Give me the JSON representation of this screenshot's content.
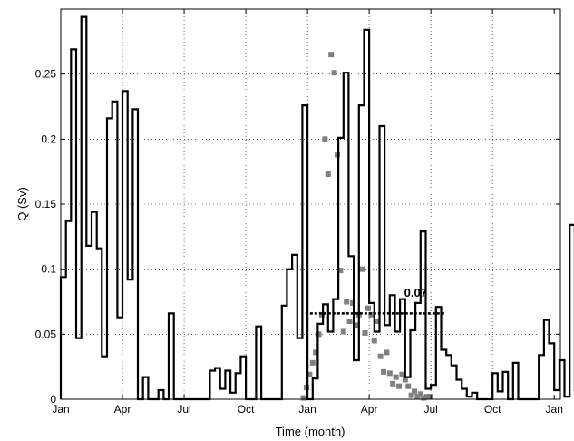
{
  "chart_data": {
    "type": "line",
    "title": "",
    "xlabel": "Time (month)",
    "ylabel": "Q (Sv)",
    "x_tick_labels": [
      "Jan",
      "Apr",
      "Jul",
      "Oct",
      "Jan",
      "Apr",
      "Jul",
      "Oct",
      "Jan"
    ],
    "x_tick_months": [
      0,
      3,
      6,
      9,
      12,
      15,
      18,
      21,
      24
    ],
    "xlim": [
      0,
      24.3
    ],
    "ylim": [
      0,
      0.3
    ],
    "y_ticks": [
      0,
      0.05,
      0.1,
      0.15,
      0.2,
      0.25
    ],
    "y_tick_labels": [
      "0",
      "0.05",
      "0.1",
      "0.15",
      "0.2",
      "0.25"
    ],
    "grid": true,
    "step_width_months": 0.25,
    "series": [
      {
        "style": "step",
        "color": "#000000",
        "values": [
          0.094,
          0.137,
          0.269,
          0.047,
          0.294,
          0.118,
          0.144,
          0.116,
          0.033,
          0.216,
          0.229,
          0.063,
          0.237,
          0.092,
          0.223,
          0,
          0.017,
          0,
          0,
          0.007,
          0,
          0.066,
          0,
          0,
          0,
          0,
          0,
          0,
          0,
          0.022,
          0.024,
          0.008,
          0.022,
          0.005,
          0.02,
          0.033,
          0,
          0,
          0.056,
          0,
          0,
          0,
          0,
          0.072,
          0.1,
          0.111,
          0.047,
          0.226,
          0,
          0.016,
          0.058,
          0.073,
          0.052,
          0.077,
          0.201,
          0.251,
          0.11,
          0.03,
          0.226,
          0.284,
          0.074,
          0.052,
          0.21,
          0.057,
          0.08,
          0.052,
          0.077,
          0.017,
          0.053,
          0.074,
          0.129,
          0.008,
          0.011,
          0.071,
          0.038,
          0.034,
          0.026,
          0.015,
          0.008,
          0.002,
          0.005,
          0,
          0,
          0,
          0.02,
          0.006,
          0.021,
          0,
          0.028,
          0,
          0,
          0,
          0,
          0.034,
          0.061,
          0.043,
          0.007,
          0.03,
          0.002,
          0.134,
          0.007
        ]
      },
      {
        "style": "scatter",
        "color": "#808080",
        "x": [
          11.8,
          11.95,
          12.1,
          12.25,
          12.4,
          12.55,
          12.7,
          12.85,
          13.0,
          13.15,
          13.3,
          13.45,
          13.6,
          13.75,
          13.9,
          14.05,
          14.2,
          14.35,
          14.5,
          14.65,
          14.8,
          14.95,
          15.1,
          15.25,
          15.4,
          15.55,
          15.7,
          15.85,
          16.0,
          16.15,
          16.3,
          16.45,
          16.6,
          16.75,
          16.9,
          17.05,
          17.2,
          17.35,
          17.5,
          17.65,
          17.8,
          17.95
        ],
        "values": [
          0.001,
          0.009,
          0.019,
          0.028,
          0.036,
          0.05,
          0.065,
          0.2,
          0.173,
          0.265,
          0.251,
          0.188,
          0.099,
          0.052,
          0.075,
          0.06,
          0.074,
          0.057,
          0.065,
          0.1,
          0.051,
          0.07,
          0.065,
          0.045,
          0.06,
          0.033,
          0.021,
          0.036,
          0.02,
          0.012,
          0.017,
          0.01,
          0.019,
          0.015,
          0.01,
          0.003,
          0.006,
          0.002,
          0.004,
          0.001,
          0.002,
          0.002
        ]
      }
    ],
    "reference_line": {
      "value": 0.066,
      "x_start": 11.9,
      "x_end": 18.7,
      "style": "dotted"
    },
    "annotations": [
      {
        "text": "0.07",
        "x": 16.7,
        "y": 0.072
      }
    ]
  }
}
